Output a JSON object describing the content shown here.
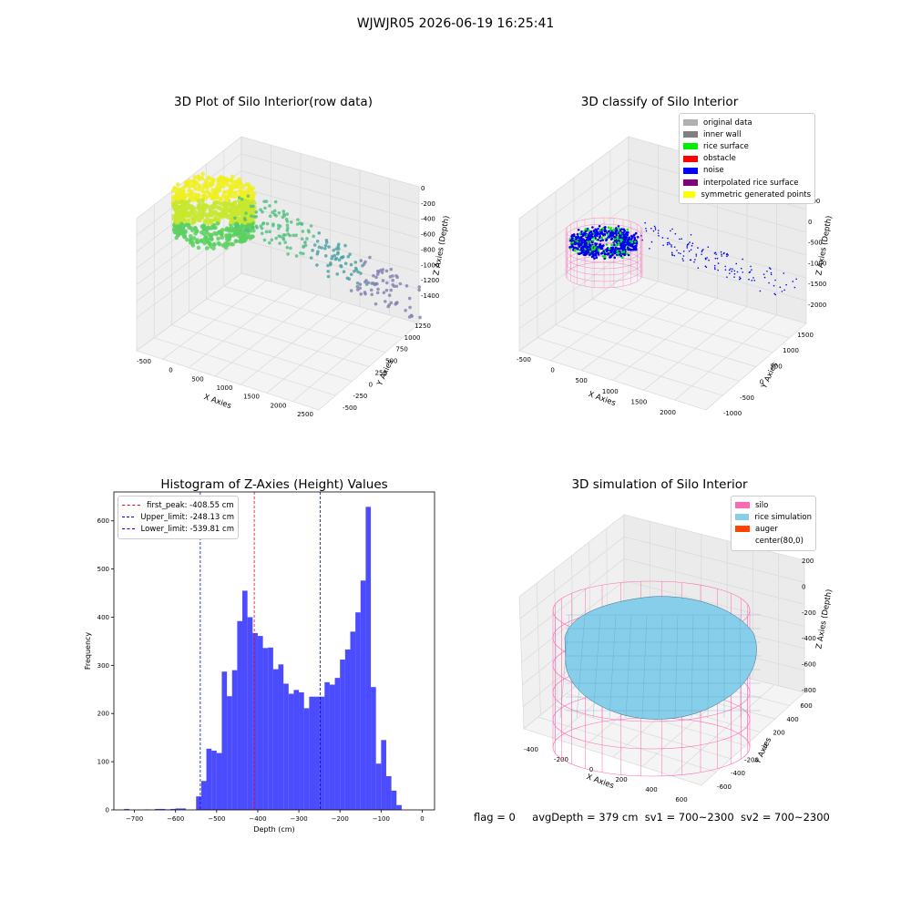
{
  "suptitle": "WJWJR05 2026-06-19 16:25:41",
  "panels": {
    "raw": {
      "title": "3D Plot of Silo Interior(row data)",
      "xlabel": "X Axies",
      "ylabel": "Y Axies",
      "zlabel": "Z Axies (Depth)",
      "xticks": [
        "-500",
        "0",
        "500",
        "1000",
        "1500",
        "2000",
        "2500"
      ],
      "yticks": [
        "-500",
        "-250",
        "0",
        "250",
        "500",
        "750",
        "1000",
        "1250"
      ],
      "zticks": [
        "0",
        "-200",
        "-400",
        "-600",
        "-800",
        "-1000",
        "-1200",
        "-1400"
      ]
    },
    "classify": {
      "title": "3D classify of Silo Interior",
      "xlabel": "X Axies",
      "ylabel": "Y Axies",
      "zlabel": "Z Axies (Depth)",
      "xticks": [
        "-500",
        "0",
        "500",
        "1000",
        "1500",
        "2000"
      ],
      "yticks": [
        "-1000",
        "-500",
        "0",
        "500",
        "1000",
        "1500"
      ],
      "zticks": [
        "500",
        "0",
        "-500",
        "-1000",
        "-1500",
        "-2000"
      ],
      "legend": [
        {
          "label": "original data",
          "color": "#b0b0b0"
        },
        {
          "label": "inner wall",
          "color": "#808080"
        },
        {
          "label": "rice surface",
          "color": "#00ee00"
        },
        {
          "label": "obstacle",
          "color": "#ff0000"
        },
        {
          "label": "noise",
          "color": "#0000ff"
        },
        {
          "label": "interpolated rice surface",
          "color": "#800080"
        },
        {
          "label": "symmetric generated points",
          "color": "#ffff00"
        }
      ]
    },
    "simulation": {
      "title": "3D simulation of Silo Interior",
      "xlabel": "X Axies",
      "ylabel": "Y Axies",
      "zlabel": "Z Axies (Depth)",
      "xticks": [
        "-400",
        "-200",
        "0",
        "200",
        "400",
        "600"
      ],
      "yticks": [
        "-600",
        "-400",
        "-200",
        "0",
        "200",
        "400",
        "600"
      ],
      "zticks": [
        "200",
        "0",
        "-200",
        "-400",
        "-600",
        "-800"
      ],
      "legend": [
        {
          "label": "silo",
          "color": "#ff69b4"
        },
        {
          "label": "rice simulation",
          "color": "#87ceeb"
        },
        {
          "label": "auger",
          "color": "#ff4500"
        },
        {
          "label": "center(80,0)",
          "color": ""
        }
      ]
    },
    "status": {
      "flag": "flag = 0",
      "avg": "avgDepth = 379 cm",
      "sv1": "sv1 = 700~2300",
      "sv2": "sv2 = 700~2300"
    }
  },
  "chart_data": [
    {
      "type": "histogram",
      "title": "Histogram of Z-Axies (Height) Values",
      "xlabel": "Depth (cm)",
      "ylabel": "Frequency",
      "xlim": [
        -750,
        30
      ],
      "ylim": [
        0,
        660
      ],
      "xticks": [
        -700,
        -600,
        -500,
        -400,
        -300,
        -200,
        -100,
        0
      ],
      "yticks": [
        0,
        100,
        200,
        300,
        400,
        500,
        600
      ],
      "bar_color": "#0000ff",
      "bin_width": 12.5,
      "bins": [
        [
          -725,
          2
        ],
        [
          -675,
          1
        ],
        [
          -650,
          2
        ],
        [
          -637.5,
          2
        ],
        [
          -625,
          1
        ],
        [
          -612.5,
          2
        ],
        [
          -600,
          3
        ],
        [
          -587.5,
          3
        ],
        [
          -550,
          28
        ],
        [
          -537.5,
          60
        ],
        [
          -525,
          127
        ],
        [
          -512.5,
          123
        ],
        [
          -500,
          118
        ],
        [
          -487.5,
          287
        ],
        [
          -475,
          236
        ],
        [
          -462.5,
          290
        ],
        [
          -450,
          392
        ],
        [
          -437.5,
          455
        ],
        [
          -425,
          400
        ],
        [
          -412.5,
          367
        ],
        [
          -400,
          361
        ],
        [
          -387.5,
          336
        ],
        [
          -375,
          337
        ],
        [
          -362.5,
          292
        ],
        [
          -350,
          302
        ],
        [
          -337.5,
          262
        ],
        [
          -325,
          241
        ],
        [
          -312.5,
          249
        ],
        [
          -300,
          244
        ],
        [
          -287.5,
          211
        ],
        [
          -275,
          235
        ],
        [
          -262.5,
          235
        ],
        [
          -250,
          235
        ],
        [
          -237.5,
          265
        ],
        [
          -225,
          260
        ],
        [
          -212.5,
          274
        ],
        [
          -200,
          312
        ],
        [
          -187.5,
          333
        ],
        [
          -175,
          370
        ],
        [
          -162.5,
          410
        ],
        [
          -150,
          476
        ],
        [
          -137.5,
          629
        ],
        [
          -125,
          255
        ],
        [
          -112.5,
          96
        ],
        [
          -100,
          145
        ],
        [
          -87.5,
          70
        ],
        [
          -75,
          40
        ],
        [
          -62.5,
          10
        ]
      ],
      "vlines": [
        {
          "label": "first_peak: -408.55 cm",
          "x": -408.55,
          "color": "#ff0000"
        },
        {
          "label": "Upper_limit: -248.13 cm",
          "x": -248.13,
          "color": "#0000ff"
        },
        {
          "label": "Lower_limit: -539.81 cm",
          "x": -539.81,
          "color": "#0000ff"
        }
      ]
    }
  ]
}
